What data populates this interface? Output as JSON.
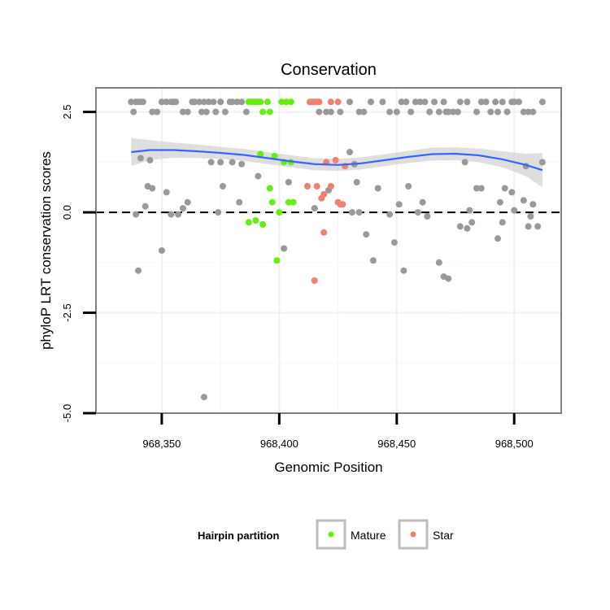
{
  "chart_data": {
    "type": "scatter",
    "title": "Conservation",
    "xlabel": "Genomic Position",
    "ylabel": "phyloP LRT conservation scores",
    "xlim": [
      968322,
      968520
    ],
    "ylim": [
      -5,
      3.1
    ],
    "x_ticks": [
      968350,
      968400,
      968450,
      968500
    ],
    "x_tick_labels": [
      "968,350",
      "968,400",
      "968,450",
      "968,500"
    ],
    "y_ticks": [
      -5,
      -2.5,
      0,
      2.5
    ],
    "y_tick_labels": [
      "-5.0",
      "-2.5",
      "0.0",
      "2.5"
    ],
    "reference_line_y": 0,
    "grid": true,
    "legend": {
      "title": "Hairpin partition",
      "position": "bottom",
      "entries": [
        {
          "label": "Mature",
          "color": "#66ee11"
        },
        {
          "label": "Star",
          "color": "#f08070"
        }
      ]
    },
    "colors": {
      "other": "#999999",
      "mature": "#66ee11",
      "star": "#f08070",
      "smooth": "#3366ff",
      "band": "#cccccc"
    },
    "series": [
      {
        "group": "other",
        "points": [
          [
            968337,
            2.75
          ],
          [
            968338,
            2.5
          ],
          [
            968339,
            2.75
          ],
          [
            968340,
            2.75
          ],
          [
            968341,
            2.75
          ],
          [
            968342,
            2.75
          ],
          [
            968346,
            2.5
          ],
          [
            968348,
            2.5
          ],
          [
            968350,
            2.75
          ],
          [
            968352,
            2.75
          ],
          [
            968354,
            2.75
          ],
          [
            968355,
            2.75
          ],
          [
            968356,
            2.75
          ],
          [
            968359,
            2.5
          ],
          [
            968361,
            2.5
          ],
          [
            968363,
            2.75
          ],
          [
            968364,
            2.75
          ],
          [
            968366,
            2.75
          ],
          [
            968367,
            2.5
          ],
          [
            968368,
            2.75
          ],
          [
            968369,
            2.5
          ],
          [
            968370,
            2.75
          ],
          [
            968372,
            2.75
          ],
          [
            968373,
            2.5
          ],
          [
            968375,
            2.75
          ],
          [
            968377,
            2.5
          ],
          [
            968379,
            2.75
          ],
          [
            968380,
            2.75
          ],
          [
            968382,
            2.75
          ],
          [
            968384,
            2.75
          ],
          [
            968386,
            2.5
          ],
          [
            968414,
            2.75
          ],
          [
            968417,
            2.5
          ],
          [
            968420,
            2.5
          ],
          [
            968422,
            2.5
          ],
          [
            968426,
            2.5
          ],
          [
            968430,
            2.75
          ],
          [
            968434,
            2.5
          ],
          [
            968436,
            2.5
          ],
          [
            968439,
            2.75
          ],
          [
            968444,
            2.75
          ],
          [
            968447,
            2.5
          ],
          [
            968450,
            2.5
          ],
          [
            968452,
            2.75
          ],
          [
            968454,
            2.75
          ],
          [
            968456,
            2.5
          ],
          [
            968458,
            2.75
          ],
          [
            968460,
            2.75
          ],
          [
            968462,
            2.75
          ],
          [
            968464,
            2.5
          ],
          [
            968466,
            2.75
          ],
          [
            968468,
            2.5
          ],
          [
            968470,
            2.75
          ],
          [
            968471,
            2.5
          ],
          [
            968472,
            2.5
          ],
          [
            968474,
            2.5
          ],
          [
            968476,
            2.5
          ],
          [
            968477,
            2.75
          ],
          [
            968480,
            2.75
          ],
          [
            968484,
            2.5
          ],
          [
            968486,
            2.75
          ],
          [
            968488,
            2.75
          ],
          [
            968490,
            2.5
          ],
          [
            968492,
            2.75
          ],
          [
            968493,
            2.5
          ],
          [
            968495,
            2.75
          ],
          [
            968497,
            2.5
          ],
          [
            968499,
            2.75
          ],
          [
            968500,
            2.75
          ],
          [
            968502,
            2.75
          ],
          [
            968504,
            2.5
          ],
          [
            968506,
            2.5
          ],
          [
            968508,
            2.5
          ],
          [
            968512,
            2.75
          ],
          [
            968341,
            1.35
          ],
          [
            968345,
            1.3
          ],
          [
            968340,
            -1.45
          ],
          [
            968339,
            -0.05
          ],
          [
            968343,
            0.15
          ],
          [
            968344,
            0.65
          ],
          [
            968346,
            0.6
          ],
          [
            968350,
            -0.95
          ],
          [
            968352,
            0.5
          ],
          [
            968354,
            -0.05
          ],
          [
            968357,
            -0.05
          ],
          [
            968359,
            0.1
          ],
          [
            968361,
            0.25
          ],
          [
            968368,
            -4.6
          ],
          [
            968371,
            1.25
          ],
          [
            968374,
            0.0
          ],
          [
            968375,
            1.25
          ],
          [
            968376,
            0.65
          ],
          [
            968380,
            1.25
          ],
          [
            968383,
            0.25
          ],
          [
            968384,
            1.2
          ],
          [
            968391,
            0.9
          ],
          [
            968402,
            -0.9
          ],
          [
            968404,
            0.75
          ],
          [
            968415,
            0.1
          ],
          [
            968421,
            0.55
          ],
          [
            968430,
            1.5
          ],
          [
            968431,
            0.0
          ],
          [
            968432,
            1.2
          ],
          [
            968433,
            0.75
          ],
          [
            968434,
            0.0
          ],
          [
            968437,
            -0.55
          ],
          [
            968440,
            -1.2
          ],
          [
            968442,
            0.6
          ],
          [
            968447,
            -0.05
          ],
          [
            968449,
            -0.75
          ],
          [
            968451,
            0.2
          ],
          [
            968453,
            -1.45
          ],
          [
            968455,
            0.65
          ],
          [
            968459,
            0.0
          ],
          [
            968461,
            0.25
          ],
          [
            968463,
            -0.1
          ],
          [
            968468,
            -1.25
          ],
          [
            968470,
            -1.6
          ],
          [
            968472,
            -1.65
          ],
          [
            968477,
            -0.35
          ],
          [
            968479,
            1.25
          ],
          [
            968480,
            -0.4
          ],
          [
            968481,
            0.05
          ],
          [
            968482,
            -0.25
          ],
          [
            968484,
            0.6
          ],
          [
            968486,
            0.6
          ],
          [
            968493,
            -0.65
          ],
          [
            968494,
            0.25
          ],
          [
            968495,
            -0.25
          ],
          [
            968496,
            0.6
          ],
          [
            968499,
            0.5
          ],
          [
            968500,
            0.05
          ],
          [
            968504,
            0.3
          ],
          [
            968505,
            1.15
          ],
          [
            968506,
            -0.35
          ],
          [
            968507,
            -0.1
          ],
          [
            968508,
            0.2
          ],
          [
            968510,
            -0.35
          ],
          [
            968512,
            1.25
          ]
        ]
      },
      {
        "group": "mature",
        "points": [
          [
            968387,
            2.75
          ],
          [
            968388,
            2.75
          ],
          [
            968389,
            2.75
          ],
          [
            968390,
            2.75
          ],
          [
            968391,
            2.75
          ],
          [
            968392,
            2.75
          ],
          [
            968395,
            2.75
          ],
          [
            968401,
            2.75
          ],
          [
            968403,
            2.75
          ],
          [
            968405,
            2.75
          ],
          [
            968393,
            2.5
          ],
          [
            968396,
            2.5
          ],
          [
            968392,
            1.45
          ],
          [
            968398,
            1.4
          ],
          [
            968402,
            1.25
          ],
          [
            968405,
            1.25
          ],
          [
            968396,
            0.6
          ],
          [
            968397,
            0.25
          ],
          [
            968404,
            0.25
          ],
          [
            968406,
            0.25
          ],
          [
            968400,
            0.0
          ],
          [
            968387,
            -0.25
          ],
          [
            968390,
            -0.2
          ],
          [
            968393,
            -0.3
          ],
          [
            968399,
            -1.2
          ]
        ]
      },
      {
        "group": "star",
        "points": [
          [
            968413,
            2.75
          ],
          [
            968414,
            2.75
          ],
          [
            968415,
            2.75
          ],
          [
            968416,
            2.75
          ],
          [
            968417,
            2.75
          ],
          [
            968422,
            2.75
          ],
          [
            968425,
            2.75
          ],
          [
            968412,
            0.65
          ],
          [
            968415,
            -1.7
          ],
          [
            968416,
            0.65
          ],
          [
            968418,
            0.35
          ],
          [
            968419,
            0.45
          ],
          [
            968420,
            1.25
          ],
          [
            968422,
            0.65
          ],
          [
            968424,
            1.3
          ],
          [
            968425,
            0.25
          ],
          [
            968426,
            0.2
          ],
          [
            968427,
            0.2
          ],
          [
            968428,
            1.15
          ],
          [
            968419,
            -0.5
          ]
        ]
      }
    ],
    "smooth": {
      "x": [
        968337,
        968345,
        968355,
        968365,
        968375,
        968385,
        968395,
        968405,
        968415,
        968425,
        968435,
        968445,
        968455,
        968465,
        968475,
        968485,
        968495,
        968505,
        968512
      ],
      "y": [
        1.5,
        1.55,
        1.55,
        1.52,
        1.48,
        1.43,
        1.35,
        1.27,
        1.2,
        1.18,
        1.22,
        1.3,
        1.38,
        1.45,
        1.46,
        1.42,
        1.32,
        1.18,
        1.05
      ],
      "lower": [
        1.15,
        1.3,
        1.36,
        1.35,
        1.33,
        1.28,
        1.2,
        1.12,
        1.05,
        1.03,
        1.07,
        1.15,
        1.23,
        1.29,
        1.3,
        1.25,
        1.12,
        0.9,
        0.62
      ],
      "upper": [
        1.85,
        1.8,
        1.74,
        1.69,
        1.63,
        1.58,
        1.5,
        1.42,
        1.35,
        1.33,
        1.37,
        1.45,
        1.53,
        1.61,
        1.62,
        1.59,
        1.52,
        1.46,
        1.48
      ]
    }
  }
}
